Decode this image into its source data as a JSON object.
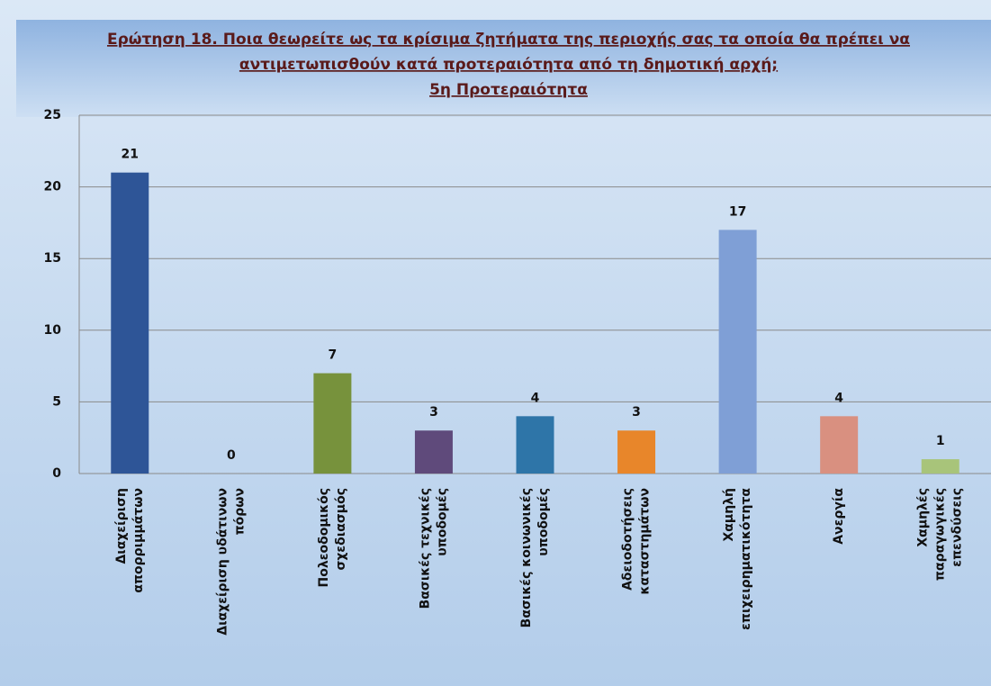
{
  "chart_data": {
    "type": "bar",
    "title": [
      "Ερώτηση 18. Ποια θεωρείτε ως τα κρίσιμα ζητήματα της περιοχής σας τα οποία θα πρέπει να",
      "αντιμετωπισθούν κατά προτεραιότητα από τη δημοτική αρχή;"
    ],
    "subtitle": "5η Προτεραιότητα",
    "categories": [
      [
        "Διαχείριση",
        "απορριμμάτων"
      ],
      [
        "Διαχείριση υδάτινων",
        "πόρων"
      ],
      [
        "Πολεοδομικός",
        "σχεδιασμός"
      ],
      [
        "Βασικές τεχνικές",
        "υποδομές"
      ],
      [
        "Βασικές κοινωνικές",
        "υποδομές"
      ],
      [
        "Αδειοδοτήσεις",
        "καταστημάτων"
      ],
      [
        "Χαμηλή",
        "επιχειρηματικότητα"
      ],
      [
        "Ανεργία"
      ],
      [
        "Χαμηλές",
        "παραγωγικές",
        "επενδύσεις"
      ]
    ],
    "values": [
      21,
      0,
      7,
      3,
      4,
      3,
      17,
      4,
      1
    ],
    "colors": [
      "#2e5597",
      "#4f81bd",
      "#77923c",
      "#5f4a7b",
      "#2e75a8",
      "#e8862a",
      "#7f9fd6",
      "#d99080",
      "#a8c47a"
    ],
    "ylim": [
      0,
      25
    ],
    "yticks": [
      0,
      5,
      10,
      15,
      20,
      25
    ],
    "grid": true
  }
}
